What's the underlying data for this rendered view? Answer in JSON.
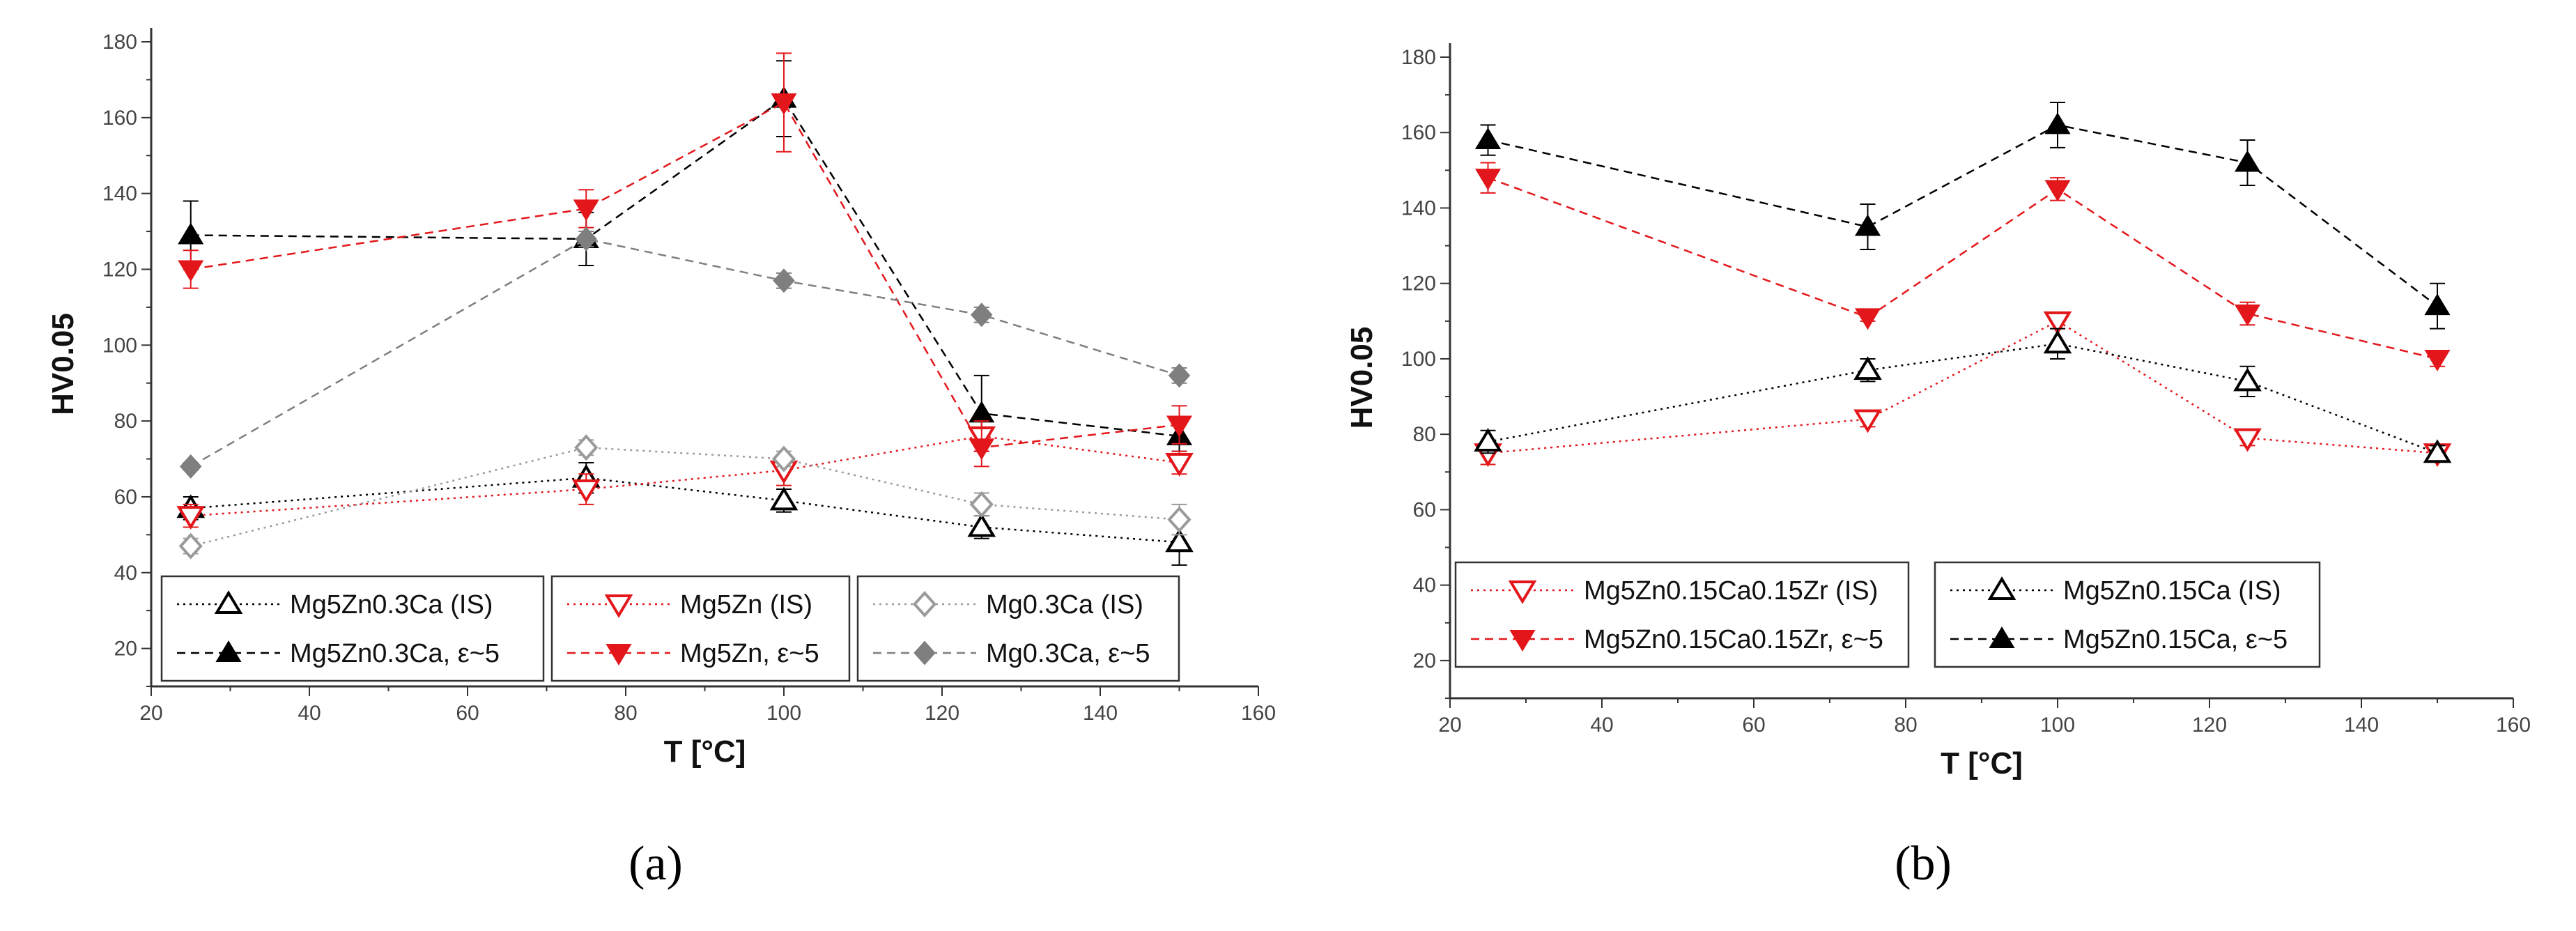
{
  "colors": {
    "black": "#000000",
    "red": "#e3171b",
    "gray": "#7f7f7f",
    "lightgray": "#9a9a9a"
  },
  "chart_data": [
    {
      "type": "line",
      "panel_label": "(a)",
      "xlabel": "T [°C]",
      "ylabel": "HV0.05",
      "xlim": [
        20,
        160
      ],
      "ylim": [
        10,
        180
      ],
      "xticks": [
        20,
        40,
        60,
        80,
        100,
        120,
        140,
        160
      ],
      "yticks": [
        20,
        40,
        60,
        80,
        100,
        120,
        140,
        160,
        180
      ],
      "legend": [
        [
          "Mg5Zn0.3Ca (IS)",
          "Mg5Zn0.3Ca, ε~5"
        ],
        [
          "Mg5Zn (IS)",
          "Mg5Zn, ε~5"
        ],
        [
          "Mg0.3Ca (IS)",
          "Mg0.3Ca, ε~5"
        ]
      ],
      "series": [
        {
          "name": "Mg5Zn0.3Ca (IS)",
          "color": "#000000",
          "marker": "triangle-up-open",
          "dash": "dot",
          "x": [
            25,
            75,
            100,
            125,
            150
          ],
          "y": [
            57,
            65,
            59,
            52,
            48
          ],
          "err": [
            3,
            4,
            3,
            3,
            6
          ]
        },
        {
          "name": "Mg5Zn0.3Ca, ε~5",
          "color": "#000000",
          "marker": "triangle-up-filled",
          "dash": "dash",
          "x": [
            25,
            75,
            100,
            125,
            150
          ],
          "y": [
            129,
            128,
            165,
            82,
            76
          ],
          "err": [
            9,
            7,
            10,
            10,
            4
          ]
        },
        {
          "name": "Mg5Zn (IS)",
          "color": "#e3171b",
          "marker": "triangle-down-open",
          "dash": "dot",
          "x": [
            25,
            75,
            100,
            125,
            150
          ],
          "y": [
            55,
            62,
            67,
            76,
            69
          ],
          "err": [
            3,
            4,
            4,
            4,
            3
          ]
        },
        {
          "name": "Mg5Zn, ε~5",
          "color": "#e3171b",
          "marker": "triangle-down-filled",
          "dash": "dash",
          "x": [
            25,
            75,
            100,
            125,
            150
          ],
          "y": [
            120,
            136,
            164,
            73,
            79
          ],
          "err": [
            5,
            5,
            13,
            5,
            5
          ]
        },
        {
          "name": "Mg0.3Ca (IS)",
          "color": "#9a9a9a",
          "marker": "diamond-open",
          "dash": "dot",
          "x": [
            25,
            75,
            100,
            125,
            150
          ],
          "y": [
            47,
            73,
            70,
            58,
            54
          ],
          "err": [
            2,
            2,
            2,
            3,
            4
          ]
        },
        {
          "name": "Mg0.3Ca, ε~5",
          "color": "#7f7f7f",
          "marker": "diamond-filled",
          "dash": "dash",
          "x": [
            25,
            75,
            100,
            125,
            150
          ],
          "y": [
            68,
            128,
            117,
            108,
            92
          ],
          "err": [
            1,
            2,
            2,
            2,
            2
          ]
        }
      ]
    },
    {
      "type": "line",
      "panel_label": "(b)",
      "xlabel": "T [°C]",
      "ylabel": "HV0.05",
      "xlim": [
        20,
        160
      ],
      "ylim": [
        10,
        180
      ],
      "xticks": [
        20,
        40,
        60,
        80,
        100,
        120,
        140,
        160
      ],
      "yticks": [
        20,
        40,
        60,
        80,
        100,
        120,
        140,
        160,
        180
      ],
      "legend": [
        [
          "Mg5Zn0.15Ca0.15Zr (IS)",
          "Mg5Zn0.15Ca0.15Zr,  ε~5"
        ],
        [
          "Mg5Zn0.15Ca (IS)",
          "Mg5Zn0.15Ca, ε~5"
        ]
      ],
      "series": [
        {
          "name": "Mg5Zn0.15Ca0.15Zr (IS)",
          "color": "#e3171b",
          "marker": "triangle-down-open",
          "dash": "dot",
          "x": [
            25,
            75,
            100,
            125,
            150
          ],
          "y": [
            75,
            84,
            110,
            79,
            75
          ],
          "err": [
            3,
            2,
            2,
            2,
            2
          ]
        },
        {
          "name": "Mg5Zn0.15Ca0.15Zr,  ε~5",
          "color": "#e3171b",
          "marker": "triangle-down-filled",
          "dash": "dash",
          "x": [
            25,
            75,
            100,
            125,
            150
          ],
          "y": [
            148,
            111,
            145,
            112,
            100
          ],
          "err": [
            4,
            1,
            3,
            3,
            2
          ]
        },
        {
          "name": "Mg5Zn0.15Ca (IS)",
          "color": "#000000",
          "marker": "triangle-up-open",
          "dash": "dot",
          "x": [
            25,
            75,
            100,
            125,
            150
          ],
          "y": [
            78,
            97,
            104,
            94,
            75
          ],
          "err": [
            3,
            3,
            4,
            4,
            2
          ]
        },
        {
          "name": "Mg5Zn0.15Ca, ε~5",
          "color": "#000000",
          "marker": "triangle-up-filled",
          "dash": "dash",
          "x": [
            25,
            75,
            100,
            125,
            150
          ],
          "y": [
            158,
            135,
            162,
            152,
            114
          ],
          "err": [
            4,
            6,
            6,
            6,
            6
          ]
        }
      ]
    }
  ]
}
